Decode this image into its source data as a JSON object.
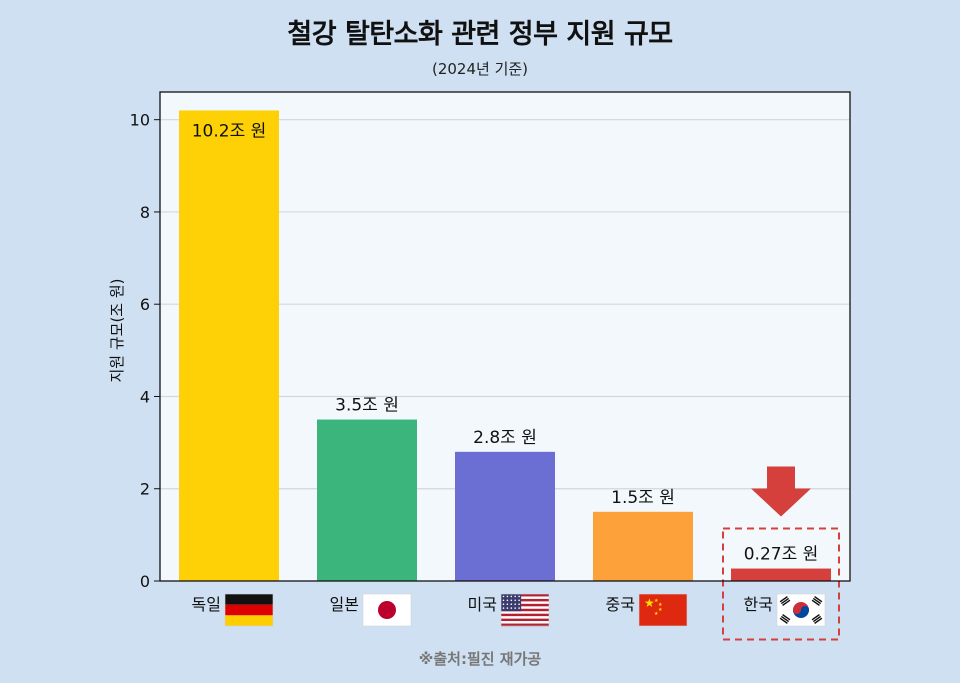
{
  "title": "철강 탈탄소화 관련 정부 지원 규모",
  "subtitle": "(2024년 기준)",
  "source": "※출처:필진 재가공",
  "colors": {
    "background": "#cfe0f2",
    "plot_background": "#f3f8fd"
  },
  "chart_data": {
    "type": "bar",
    "ylabel": "지원 규모(조 원)",
    "ylim": [
      0,
      10.6
    ],
    "yticks": [
      0,
      2,
      4,
      6,
      8,
      10
    ],
    "ytick_labels": [
      "0",
      "2",
      "4",
      "6",
      "8",
      "10"
    ],
    "grid": true,
    "categories": [
      "독일",
      "일본",
      "미국",
      "중국",
      "한국"
    ],
    "values": [
      10.2,
      3.5,
      2.8,
      1.5,
      0.27
    ],
    "data_labels": [
      "10.2조 원",
      "3.5조 원",
      "2.8조 원",
      "1.5조 원",
      "0.27조 원"
    ],
    "bar_colors": [
      "#fdd106",
      "#3cb57c",
      "#6b6fd3",
      "#fda13b",
      "#d5403d"
    ],
    "flags": [
      "germany-flag",
      "japan-flag",
      "usa-flag",
      "china-flag",
      "korea-flag"
    ],
    "highlight": {
      "category": "한국",
      "marker": "down-arrow-icon",
      "color": "#d5403d",
      "box_style": "dashed"
    }
  }
}
